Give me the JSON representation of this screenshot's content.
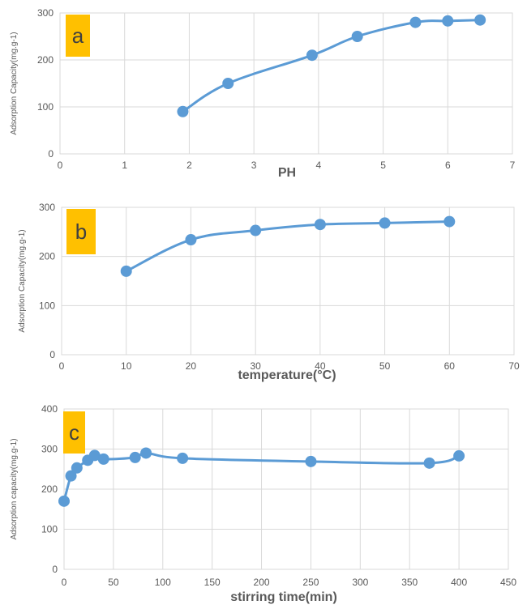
{
  "colors": {
    "series": "#5B9BD5",
    "grid": "#D9D9D9",
    "label_box": "#FFC000",
    "text": "#595959"
  },
  "chart_data": [
    {
      "type": "line",
      "panel_label": "a",
      "xlabel": "PH",
      "ylabel": "Adsorption Capacity(mg.g-1)",
      "xlim": [
        0,
        7
      ],
      "ylim": [
        0,
        300
      ],
      "xticks": [
        0,
        1,
        2,
        3,
        4,
        5,
        6,
        7
      ],
      "yticks": [
        0,
        100,
        200,
        300
      ],
      "grid": true,
      "series": [
        {
          "x": [
            1.9,
            2.6,
            3.9,
            4.6,
            5.5,
            6.0,
            6.5
          ],
          "y": [
            90,
            150,
            210,
            250,
            280,
            283,
            285
          ]
        }
      ]
    },
    {
      "type": "line",
      "panel_label": "b",
      "xlabel": "temperature(°C)",
      "ylabel": "Adsorption Capacity(mg.g-1)",
      "xlim": [
        0,
        70
      ],
      "ylim": [
        0,
        300
      ],
      "xticks": [
        0,
        10,
        20,
        30,
        40,
        50,
        60,
        70
      ],
      "yticks": [
        0,
        100,
        200,
        300
      ],
      "grid": true,
      "series": [
        {
          "x": [
            10,
            20,
            30,
            40,
            50,
            60
          ],
          "y": [
            170,
            234,
            253,
            265,
            268,
            271
          ]
        }
      ]
    },
    {
      "type": "line",
      "panel_label": "c",
      "xlabel": "stirring time(min)",
      "ylabel": "Adsorption capacity(mg.g-1)",
      "xlim": [
        0,
        450
      ],
      "ylim": [
        0,
        400
      ],
      "xticks": [
        0,
        50,
        100,
        150,
        200,
        250,
        300,
        350,
        400,
        450
      ],
      "yticks": [
        0,
        100,
        200,
        300,
        400
      ],
      "grid": true,
      "series": [
        {
          "x": [
            0,
            7,
            13,
            24,
            31,
            40,
            72,
            83,
            120,
            250,
            370,
            400
          ],
          "y": [
            170,
            233,
            253,
            272,
            284,
            275,
            279,
            290,
            277,
            269,
            265,
            283
          ]
        }
      ]
    }
  ]
}
